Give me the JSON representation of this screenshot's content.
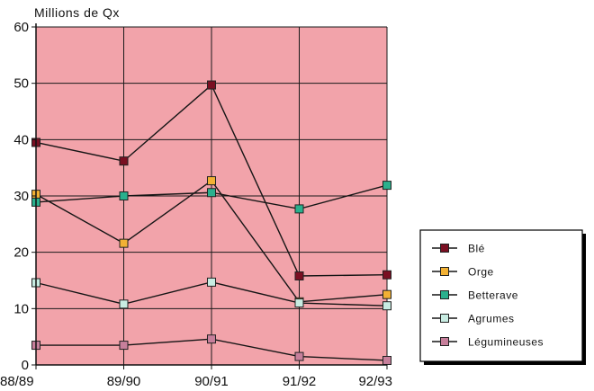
{
  "chart_data": {
    "type": "line",
    "title": "",
    "xlabel": "",
    "ylabel": "Millions de Qx",
    "categories": [
      "88/89",
      "89/90",
      "90/91",
      "91/92",
      "92/93"
    ],
    "ylim": [
      0,
      60
    ],
    "yticks": [
      "0",
      "10",
      "20",
      "30",
      "40",
      "50",
      "60"
    ],
    "grid": true,
    "plot_background": "#f2a3aa",
    "legend_position": "bottom-right",
    "series": [
      {
        "name": "Blé",
        "color": "#7a0f22",
        "values": [
          39.5,
          36.2,
          49.7,
          15.8,
          16.0
        ]
      },
      {
        "name": "Orge",
        "color": "#f2b134",
        "values": [
          30.3,
          21.6,
          32.7,
          11.2,
          12.5
        ]
      },
      {
        "name": "Betterave",
        "color": "#2ab08d",
        "values": [
          28.9,
          30.0,
          30.6,
          27.7,
          31.9
        ]
      },
      {
        "name": "Agrumes",
        "color": "#c8ece2",
        "values": [
          14.6,
          10.8,
          14.7,
          11.0,
          10.5
        ]
      },
      {
        "name": "Légumineuses",
        "color": "#c77f9b",
        "values": [
          3.5,
          3.5,
          4.6,
          1.5,
          0.8
        ]
      }
    ]
  }
}
